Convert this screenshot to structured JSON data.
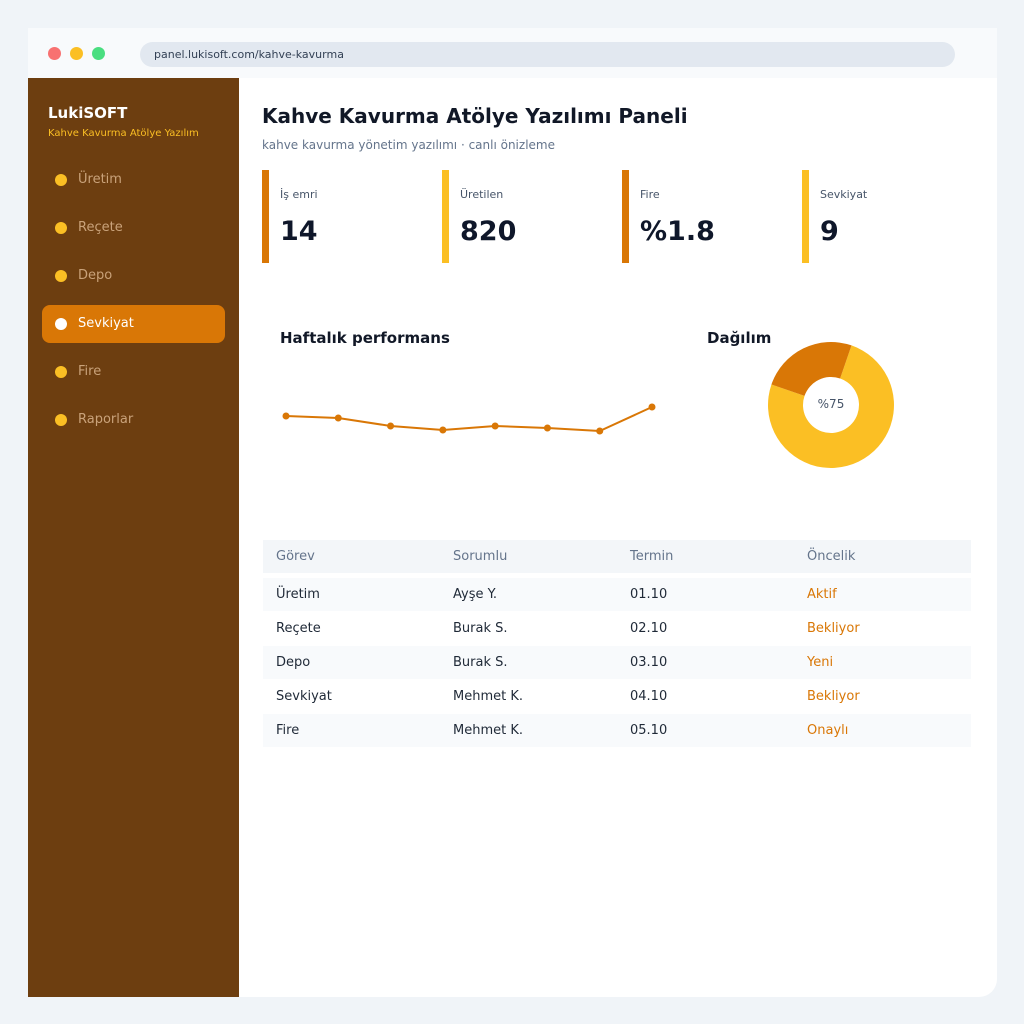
{
  "browser": {
    "url": "panel.lukisoft.com/kahve-kavurma"
  },
  "sidebar": {
    "brand": "LukiSOFT",
    "subtitle": "Kahve Kavurma Atölye Yazılım",
    "items": [
      {
        "label": "Üretim"
      },
      {
        "label": "Reçete"
      },
      {
        "label": "Depo"
      },
      {
        "label": "Sevkiyat"
      },
      {
        "label": "Fire"
      },
      {
        "label": "Raporlar"
      }
    ],
    "active_item": "Sevkiyat"
  },
  "header": {
    "title": "Kahve Kavurma Atölye Yazılımı Paneli",
    "subtitle": "kahve kavurma yönetim yazılımı · canlı önizleme"
  },
  "kpis": [
    {
      "label": "İş emri",
      "value": "14",
      "color": "#d97706"
    },
    {
      "label": "Üretilen",
      "value": "820",
      "color": "#fbbf24"
    },
    {
      "label": "Fire",
      "value": "%1.8",
      "color": "#d97706"
    },
    {
      "label": "Sevkiyat",
      "value": "9",
      "color": "#fbbf24"
    }
  ],
  "charts": {
    "performance_title": "Haftalık performans",
    "distribution_title": "Dağılım",
    "donut_label": "%75"
  },
  "chart_data": [
    {
      "type": "line",
      "title": "Haftalık performans",
      "values": [
        62,
        60,
        52,
        48,
        52,
        50,
        47,
        71
      ],
      "ylim": [
        0,
        100
      ],
      "grid": false,
      "color": "#d97706"
    },
    {
      "type": "pie",
      "title": "Dağılım",
      "values": [
        75,
        25
      ],
      "colors": [
        "#fbbf24",
        "#d97706"
      ],
      "center_label": "%75"
    }
  ],
  "table": {
    "headers": [
      "Görev",
      "Sorumlu",
      "Termin",
      "Öncelik"
    ],
    "rows": [
      [
        "Üretim",
        "Ayşe Y.",
        "01.10",
        "Aktif"
      ],
      [
        "Reçete",
        "Burak S.",
        "02.10",
        "Bekliyor"
      ],
      [
        "Depo",
        "Burak S.",
        "03.10",
        "Yeni"
      ],
      [
        "Sevkiyat",
        "Mehmet K.",
        "04.10",
        "Bekliyor"
      ],
      [
        "Fire",
        "Mehmet K.",
        "05.10",
        "Onaylı"
      ]
    ]
  },
  "colors": {
    "sidebar_bg": "#6d3e10",
    "accent": "#d97706",
    "accent_light": "#fbbf24"
  }
}
